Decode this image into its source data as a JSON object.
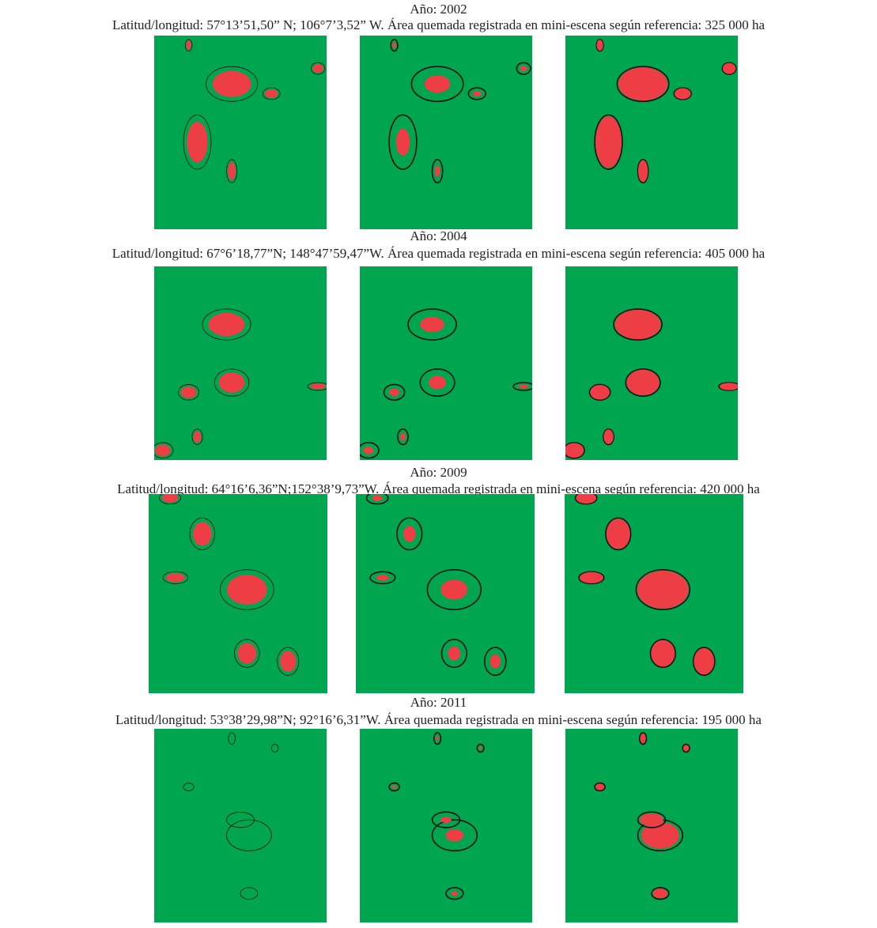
{
  "sections": [
    {
      "year": "Año: 2002",
      "caption": "Latitud/longitud: 57°13’51,50” N; 106°7’3,52” W. Área quemada registrada en mini-escena según referencia: 325 000 ha"
    },
    {
      "year": "Año: 2004",
      "caption": "Latitud/longitud: 67°6’18,77”N; 148°47’59,47”W. Área quemada registrada en mini-escena según referencia: 405 000 ha"
    },
    {
      "year": "Año: 2009",
      "caption": "Latitud/longitud: 64°16’6,36”N;152°38’9,73”W. Área quemada registrada en mini-escena según referencia: 420 000 ha"
    },
    {
      "year": "Año: 2011",
      "caption": "Latitud/longitud: 53°38’29,98”N; 92°16’6,31”W. Área quemada registrada en mini-escena según referencia: 195 000 ha"
    }
  ]
}
